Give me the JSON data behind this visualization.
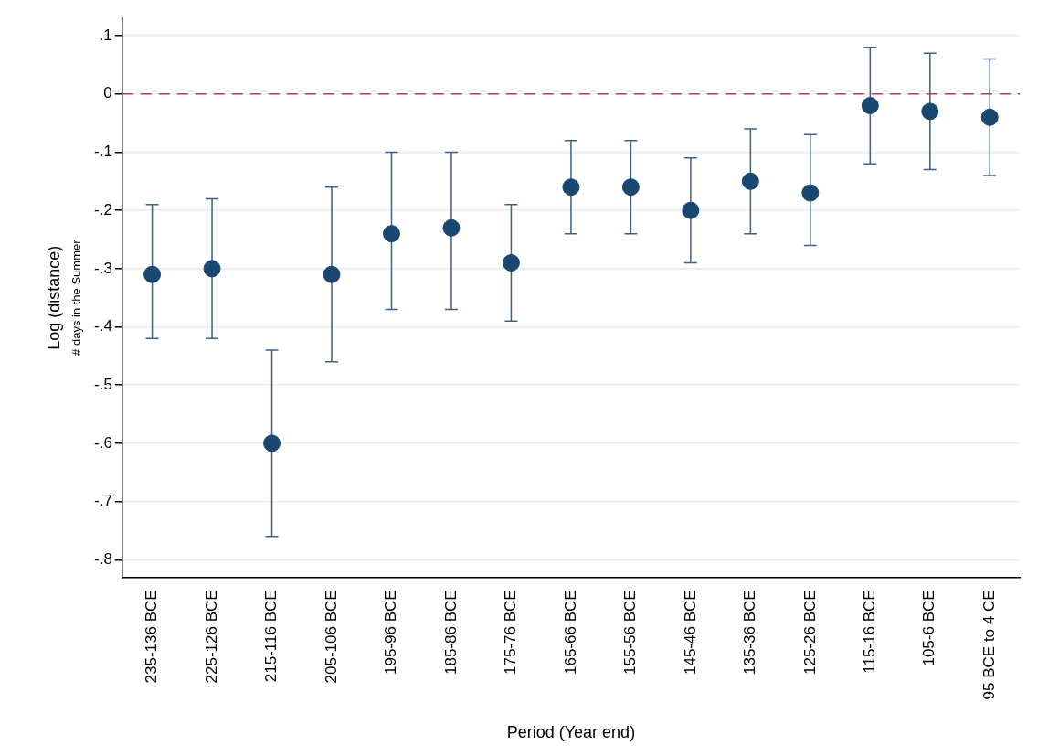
{
  "chart_data": {
    "type": "scatter",
    "xlabel": "Period (Year end)",
    "ylabel": "Log (distance)",
    "annotations": [
      "# days in the Summer"
    ],
    "categories": [
      "235-136 BCE",
      "225-126 BCE",
      "215-116 BCE",
      "205-106 BCE",
      "195-96 BCE",
      "185-86 BCE",
      "175-76 BCE",
      "165-66 BCE",
      "155-56 BCE",
      "145-46 BCE",
      "135-36 BCE",
      "125-26 BCE",
      "115-16 BCE",
      "105-6 BCE",
      "95 BCE to 4 CE"
    ],
    "series": [
      {
        "color": "#1a476f",
        "values": [
          -0.31,
          -0.3,
          -0.6,
          -0.31,
          -0.24,
          -0.23,
          -0.29,
          -0.16,
          -0.16,
          -0.2,
          -0.15,
          -0.17,
          -0.02,
          -0.03,
          -0.04
        ],
        "errors": [
          [
            -0.42,
            -0.19
          ],
          [
            -0.42,
            -0.18
          ],
          [
            -0.76,
            -0.44
          ],
          [
            -0.46,
            -0.16
          ],
          [
            -0.37,
            -0.1
          ],
          [
            -0.37,
            -0.1
          ],
          [
            -0.39,
            -0.19
          ],
          [
            -0.24,
            -0.08
          ],
          [
            -0.24,
            -0.08
          ],
          [
            -0.29,
            -0.11
          ],
          [
            -0.24,
            -0.06
          ],
          [
            -0.26,
            -0.07
          ],
          [
            -0.12,
            0.08
          ],
          [
            -0.13,
            0.07
          ],
          [
            -0.14,
            0.06
          ]
        ]
      }
    ],
    "ylim": [
      -0.83,
      0.13
    ],
    "yticks": [
      {
        "value": 0.1,
        "label": ".1"
      },
      0,
      {
        "value": -0.1,
        "label": "-.1"
      },
      {
        "value": -0.2,
        "label": "-.2"
      },
      {
        "value": -0.3,
        "label": "-.3"
      },
      {
        "value": -0.4,
        "label": "-.4"
      },
      {
        "value": -0.5,
        "label": "-.5"
      },
      {
        "value": -0.6,
        "label": "-.6"
      },
      {
        "value": -0.7,
        "label": "-.7"
      },
      {
        "value": -0.8,
        "label": "-.8"
      }
    ],
    "ref_lines": [
      {
        "axis": "y",
        "value": 0,
        "color": "#c8385a",
        "line_style": "dashed"
      }
    ],
    "grid": "y",
    "legend": false,
    "marker": "circle"
  }
}
